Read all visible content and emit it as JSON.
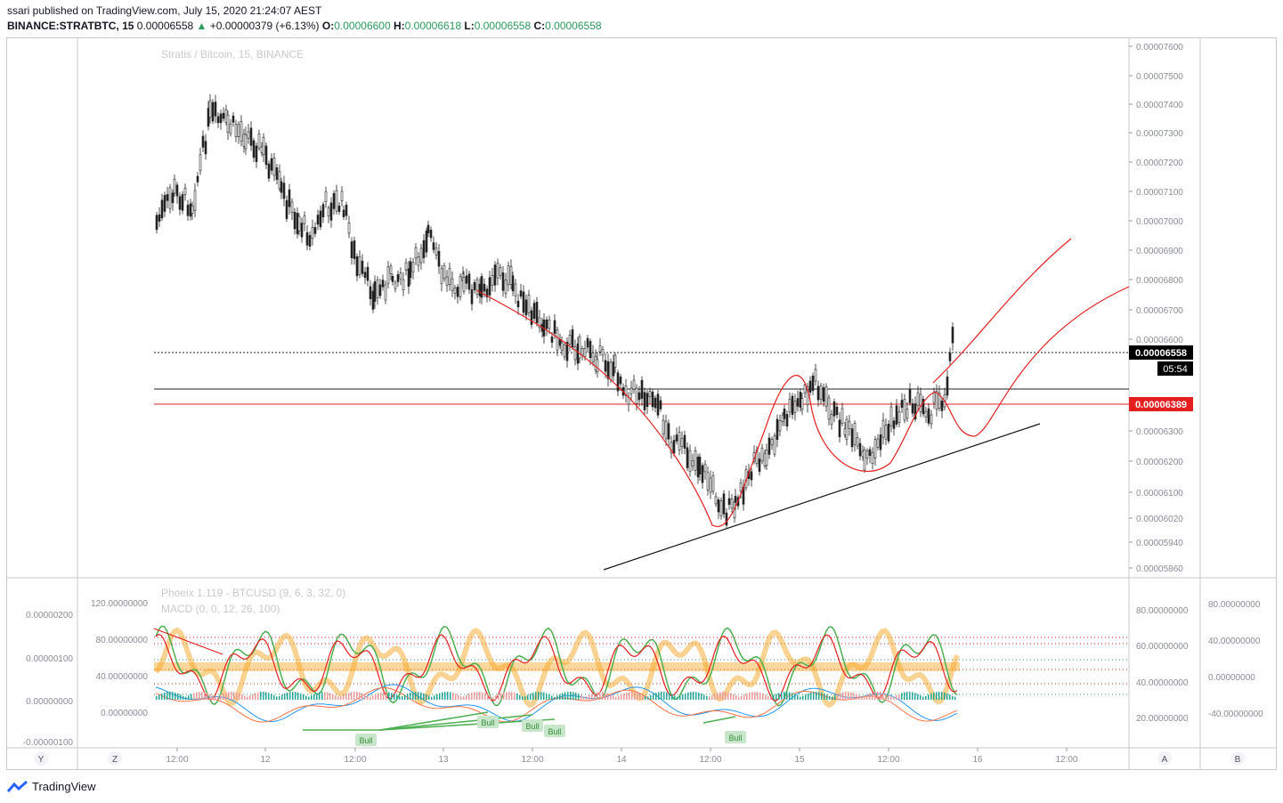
{
  "header": {
    "published": "ssari published on TradingView.com, July 15, 2020 21:24:07 AEST",
    "symbol": "BINANCE:STRATBTC, 15",
    "last": "0.00006558",
    "change_arrow": "▲",
    "change": "+0.00000379 (+6.13%)",
    "o_label": "O:",
    "o": "0.00006600",
    "h_label": "H:",
    "h": "0.00006618",
    "l_label": "L:",
    "l": "0.00006558",
    "c_label": "C:",
    "c": "0.00006558"
  },
  "main_pane": {
    "watermark": "Stratis / Bitcoin, 15, BINANCE",
    "price_ticks": [
      "0.00007600",
      "0.00007500",
      "0.00007400",
      "0.00007300",
      "0.00007200",
      "0.00007100",
      "0.00007000",
      "0.00006900",
      "0.00006800",
      "0.00006700",
      "0.00006600",
      "0.00006300",
      "0.00006200",
      "0.00006100",
      "0.00006020",
      "0.00005940",
      "0.00005860"
    ],
    "last_price_label": "0.00006558",
    "countdown_label": "05:54",
    "red_line_label": "0.00006389"
  },
  "indicator_pane": {
    "title1": "Phoeix 1.119 - BTCUSD (9, 6, 3, 32, 0)",
    "title2": "MACD (0, 0, 12, 26, 100)",
    "left_ticks": [
      "0.00000200",
      "0.00000100",
      "0.00000000",
      "-0.00000100"
    ],
    "inner_ticks": [
      "120.00000000",
      "80.00000000",
      "40.00000000",
      "0.00000000"
    ],
    "right_ticks_a": [
      "80.00000000",
      "60.00000000",
      "40.00000000",
      "20.00000000"
    ],
    "right_ticks_b": [
      "80.00000000",
      "40.00000000",
      "0.00000000",
      "-40.00000000"
    ],
    "bull_labels": [
      "Bull",
      "Bull",
      "Bull",
      "Bull",
      "Bull"
    ]
  },
  "time_axis": {
    "labels": [
      "12:00",
      "12",
      "12:00",
      "13",
      "12:00",
      "14",
      "12:00",
      "15",
      "12:00",
      "16",
      "12:00"
    ],
    "scale_y": "Y",
    "scale_z": "Z",
    "scale_a": "A",
    "scale_b": "B"
  },
  "footer": {
    "brand": "TradingView"
  },
  "colors": {
    "up": "#26a69a",
    "red": "#e51f1f",
    "green_osc": "#4caf50",
    "orange": "#f5a623"
  }
}
